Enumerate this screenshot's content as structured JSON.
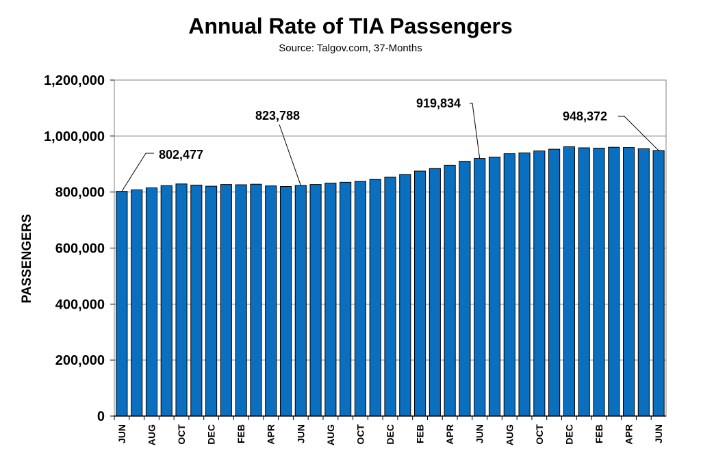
{
  "chart_data": {
    "type": "bar",
    "title": "Annual Rate of TIA Passengers",
    "subtitle": "Source: Talgov.com, 37-Months",
    "xlabel": "",
    "ylabel": "PASSENGERS",
    "ylim": [
      0,
      1200000
    ],
    "yticks": [
      0,
      200000,
      400000,
      600000,
      800000,
      1000000,
      1200000
    ],
    "ytick_labels": [
      "0",
      "200,000",
      "400,000",
      "600,000",
      "800,000",
      "1,000,000",
      "1,200,000"
    ],
    "grid": "horizontal",
    "bar_color": "#0B6FBF",
    "categories": [
      "JUN",
      "",
      "AUG",
      "",
      "OCT",
      "",
      "DEC",
      "",
      "FEB",
      "",
      "APR",
      "",
      "JUN",
      "",
      "AUG",
      "",
      "OCT",
      "",
      "DEC",
      "",
      "FEB",
      "",
      "APR",
      "",
      "JUN",
      "",
      "AUG",
      "",
      "OCT",
      "",
      "DEC",
      "",
      "FEB",
      "",
      "APR",
      "",
      "JUN"
    ],
    "values": [
      802477,
      808000,
      815000,
      823000,
      829000,
      825000,
      821000,
      827000,
      826000,
      828000,
      822000,
      820000,
      823788,
      827000,
      832000,
      835000,
      838000,
      845000,
      853000,
      863000,
      875000,
      884000,
      896000,
      910000,
      919834,
      925000,
      937000,
      940000,
      947000,
      953000,
      962000,
      958000,
      957000,
      960000,
      959000,
      955000,
      948372
    ],
    "annotations": [
      {
        "label": "802,477",
        "index": 0
      },
      {
        "label": "823,788",
        "index": 12
      },
      {
        "label": "919,834",
        "index": 24
      },
      {
        "label": "948,372",
        "index": 36
      }
    ]
  }
}
